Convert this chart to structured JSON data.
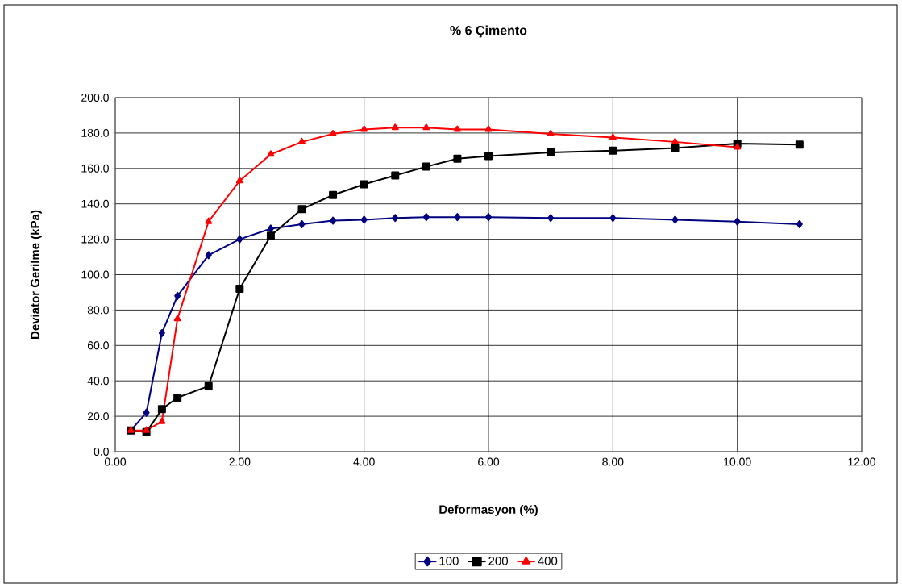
{
  "chart_data": {
    "type": "line",
    "title": "% 6 Çimento",
    "xlabel": "Deformasyon (%)",
    "ylabel": "Deviator Gerilme  (kPa)",
    "x": [
      0.25,
      0.5,
      0.75,
      1,
      1.5,
      2,
      2.5,
      3,
      3.5,
      4,
      4.5,
      5,
      5.5,
      6,
      7,
      8,
      9,
      10,
      11
    ],
    "series": [
      {
        "name": "100",
        "color": "#000080",
        "marker": "diamond",
        "values": [
          12,
          22,
          67,
          88,
          111,
          120,
          126,
          128.5,
          130.5,
          131,
          132,
          132.5,
          132.5,
          132.5,
          132,
          132,
          131,
          130,
          128.5
        ]
      },
      {
        "name": "200",
        "color": "#000000",
        "marker": "square",
        "values": [
          12,
          11,
          24,
          30.5,
          37,
          92,
          122,
          137,
          145,
          151,
          156,
          161,
          165.5,
          167,
          169,
          170,
          171.5,
          174,
          173.5
        ]
      },
      {
        "name": "400",
        "color": "#ff0000",
        "marker": "triangle",
        "x": [
          0.25,
          0.5,
          0.75,
          1,
          1.5,
          2,
          2.5,
          3,
          3.5,
          4,
          4.5,
          5,
          5.5,
          6,
          7,
          8,
          9,
          10
        ],
        "values": [
          12,
          12,
          17,
          75,
          130,
          153,
          168,
          175,
          179.5,
          182,
          183,
          183,
          182,
          182,
          179.5,
          177.5,
          175,
          172
        ]
      }
    ],
    "xlim": [
      0,
      12
    ],
    "ylim": [
      0,
      200
    ],
    "xticks": [
      {
        "value": 0,
        "label": "0.00"
      },
      {
        "value": 2,
        "label": "2.00"
      },
      {
        "value": 4,
        "label": "4.00"
      },
      {
        "value": 6,
        "label": "6.00"
      },
      {
        "value": 8,
        "label": "8.00"
      },
      {
        "value": 10,
        "label": "10.00"
      },
      {
        "value": 12,
        "label": "12.00"
      }
    ],
    "yticks": [
      {
        "value": 0,
        "label": "0.0"
      },
      {
        "value": 20,
        "label": "20.0"
      },
      {
        "value": 40,
        "label": "40.0"
      },
      {
        "value": 60,
        "label": "60.0"
      },
      {
        "value": 80,
        "label": "80.0"
      },
      {
        "value": 100,
        "label": "100.0"
      },
      {
        "value": 120,
        "label": "120.0"
      },
      {
        "value": 140,
        "label": "140.0"
      },
      {
        "value": 160,
        "label": "160.0"
      },
      {
        "value": 180,
        "label": "180.0"
      },
      {
        "value": 200,
        "label": "200.0"
      }
    ],
    "grid": true,
    "legend": "bottom",
    "line_style": "solid"
  }
}
